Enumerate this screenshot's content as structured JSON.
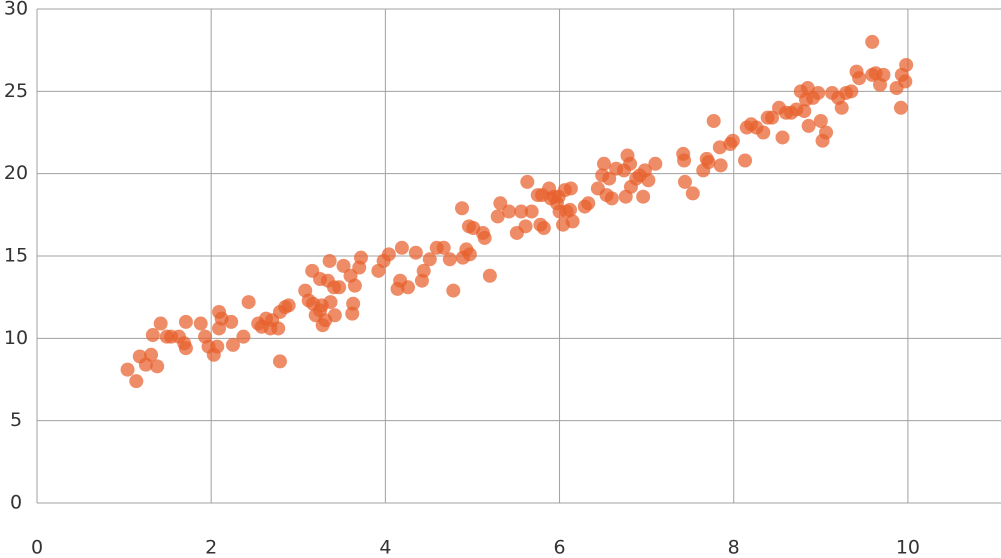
{
  "chart_data": {
    "type": "scatter",
    "xlim": [
      0,
      11
    ],
    "ylim": [
      0,
      30
    ],
    "xticks": [
      0,
      2,
      4,
      6,
      8,
      10
    ],
    "yticks": [
      0,
      5,
      10,
      15,
      20,
      25,
      30
    ],
    "grid": true,
    "series": [
      {
        "color": "#e8602c",
        "x": [
          1.04,
          1.14,
          1.18,
          1.25,
          1.31,
          1.33,
          1.38,
          1.42,
          1.49,
          1.54,
          1.63,
          1.69,
          1.71,
          1.71,
          1.88,
          1.93,
          1.97,
          2.03,
          2.07,
          2.09,
          2.09,
          2.12,
          2.23,
          2.25,
          2.37,
          2.43,
          2.54,
          2.58,
          2.63,
          2.68,
          2.7,
          2.77,
          2.79,
          2.85,
          2.79,
          2.89,
          3.08,
          3.12,
          3.16,
          3.17,
          3.2,
          3.25,
          3.25,
          3.27,
          3.28,
          3.31,
          3.34,
          3.36,
          3.37,
          3.41,
          3.42,
          3.47,
          3.52,
          3.6,
          3.62,
          3.63,
          3.65,
          3.7,
          3.72,
          3.92,
          3.98,
          4.04,
          4.14,
          4.17,
          4.19,
          4.26,
          4.35,
          4.42,
          4.44,
          4.51,
          4.59,
          4.67,
          4.74,
          4.78,
          4.88,
          4.89,
          4.93,
          4.97,
          4.96,
          5.01,
          5.12,
          5.14,
          5.2,
          5.29,
          5.32,
          5.42,
          5.51,
          5.56,
          5.61,
          5.63,
          5.68,
          5.75,
          5.78,
          5.8,
          5.82,
          5.88,
          5.9,
          5.94,
          5.97,
          5.99,
          6.0,
          6.04,
          6.06,
          6.08,
          6.13,
          6.15,
          6.12,
          6.29,
          6.33,
          6.44,
          6.49,
          6.51,
          6.54,
          6.57,
          6.6,
          6.65,
          6.74,
          6.76,
          6.78,
          6.81,
          6.82,
          6.88,
          6.92,
          6.96,
          6.98,
          7.02,
          7.1,
          7.42,
          7.43,
          7.44,
          7.53,
          7.65,
          7.69,
          7.71,
          7.77,
          7.84,
          7.85,
          7.96,
          7.99,
          8.13,
          8.15,
          8.2,
          8.26,
          8.34,
          8.39,
          8.44,
          8.52,
          8.56,
          8.6,
          8.66,
          8.72,
          8.77,
          8.81,
          8.83,
          8.85,
          8.86,
          8.91,
          8.97,
          9.0,
          9.02,
          9.06,
          9.13,
          9.2,
          9.24,
          9.29,
          9.35,
          9.41,
          9.44,
          9.59,
          9.59,
          9.63,
          9.68,
          9.72,
          9.87,
          9.92,
          9.93,
          9.98,
          9.97
        ],
        "values": [
          8.1,
          7.4,
          8.9,
          8.4,
          9.0,
          10.2,
          8.3,
          10.9,
          10.1,
          10.1,
          10.1,
          9.7,
          9.4,
          11.0,
          10.9,
          10.1,
          9.5,
          9.0,
          9.5,
          10.6,
          11.6,
          11.2,
          11.0,
          9.6,
          10.1,
          12.2,
          10.9,
          10.7,
          11.2,
          10.6,
          11.1,
          10.6,
          11.6,
          11.9,
          8.6,
          12.0,
          12.9,
          12.3,
          14.1,
          12.1,
          11.4,
          11.7,
          13.6,
          12.0,
          10.8,
          11.1,
          13.5,
          14.7,
          12.2,
          13.1,
          11.4,
          13.1,
          14.4,
          13.8,
          11.5,
          12.1,
          13.2,
          14.3,
          14.9,
          14.1,
          14.7,
          15.1,
          13.0,
          13.5,
          15.5,
          13.1,
          15.2,
          13.5,
          14.1,
          14.8,
          15.5,
          15.5,
          14.8,
          12.9,
          17.9,
          14.9,
          15.4,
          15.1,
          16.8,
          16.7,
          16.4,
          16.1,
          13.8,
          17.4,
          18.2,
          17.7,
          16.4,
          17.7,
          16.8,
          19.5,
          17.7,
          18.7,
          16.9,
          18.7,
          16.7,
          19.1,
          18.5,
          18.6,
          18.2,
          18.6,
          17.7,
          16.9,
          19.0,
          17.7,
          19.1,
          17.1,
          17.8,
          18.0,
          18.2,
          19.1,
          19.9,
          20.6,
          18.7,
          19.7,
          18.5,
          20.3,
          20.2,
          18.6,
          21.1,
          20.6,
          19.2,
          19.7,
          19.9,
          18.6,
          20.2,
          19.6,
          20.6,
          21.2,
          20.8,
          19.5,
          18.8,
          20.2,
          20.9,
          20.7,
          23.2,
          21.6,
          20.5,
          21.8,
          22.0,
          20.8,
          22.8,
          23.0,
          22.8,
          22.5,
          23.4,
          23.4,
          24.0,
          22.2,
          23.7,
          23.7,
          23.9,
          25.0,
          23.8,
          24.5,
          25.2,
          22.9,
          24.6,
          24.9,
          23.2,
          22.0,
          22.5,
          24.9,
          24.6,
          24.0,
          24.9,
          25.0,
          26.2,
          25.8,
          28.0,
          26.0,
          26.1,
          25.4,
          26.0,
          25.2,
          24.0,
          26.0,
          26.6,
          25.6
        ]
      }
    ]
  }
}
